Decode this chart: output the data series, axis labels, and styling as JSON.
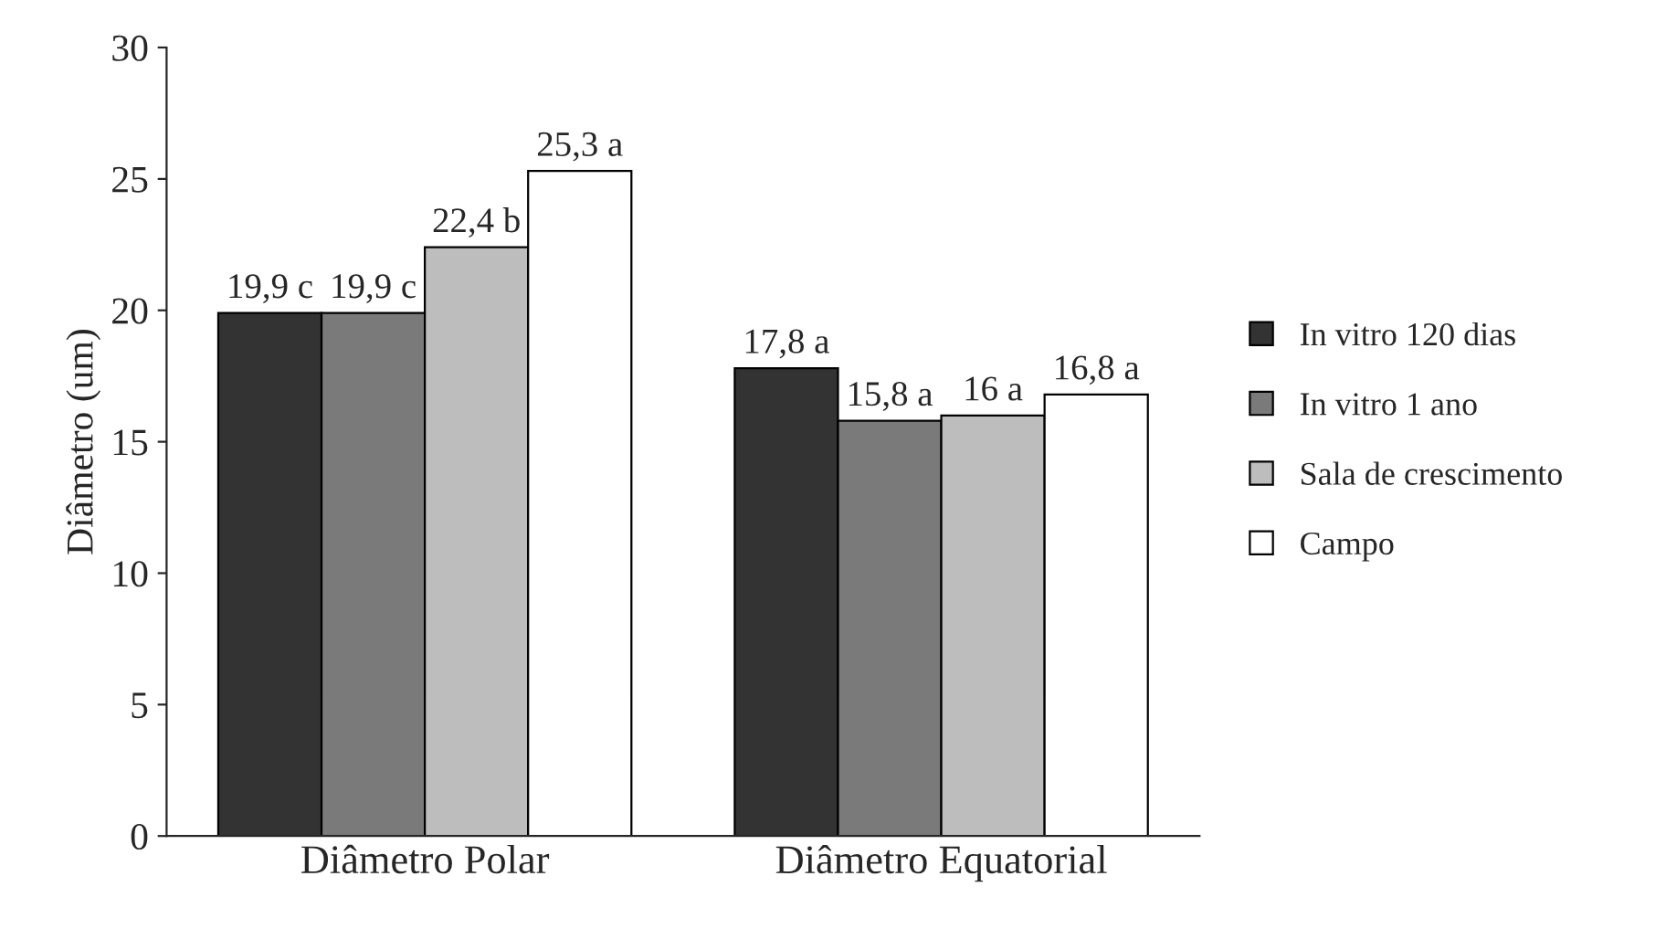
{
  "chart_data": {
    "type": "bar",
    "ylabel": "Diâmetro (um)",
    "categories": [
      "Diâmetro Polar",
      "Diâmetro Equatorial"
    ],
    "series": [
      {
        "name": "In vitro 120 dias",
        "color": "#333333",
        "values": [
          19.9,
          17.8
        ],
        "value_labels": [
          "19,9 c",
          "17,8 a"
        ]
      },
      {
        "name": "In vitro 1 ano",
        "color": "#7a7a7a",
        "values": [
          19.9,
          15.8
        ],
        "value_labels": [
          "19,9 c",
          "15,8 a"
        ]
      },
      {
        "name": "Sala de crescimento",
        "color": "#bdbdbd",
        "values": [
          22.4,
          16
        ],
        "value_labels": [
          "22,4 b",
          "16 a"
        ]
      },
      {
        "name": "Campo",
        "color": "#ffffff",
        "values": [
          25.3,
          16.8
        ],
        "value_labels": [
          "25,3 a",
          "16,8 a"
        ]
      }
    ],
    "ylim": [
      0,
      30
    ],
    "yticks": [
      0,
      5,
      10,
      15,
      20,
      25,
      30
    ],
    "grid": false,
    "legend": "right"
  }
}
